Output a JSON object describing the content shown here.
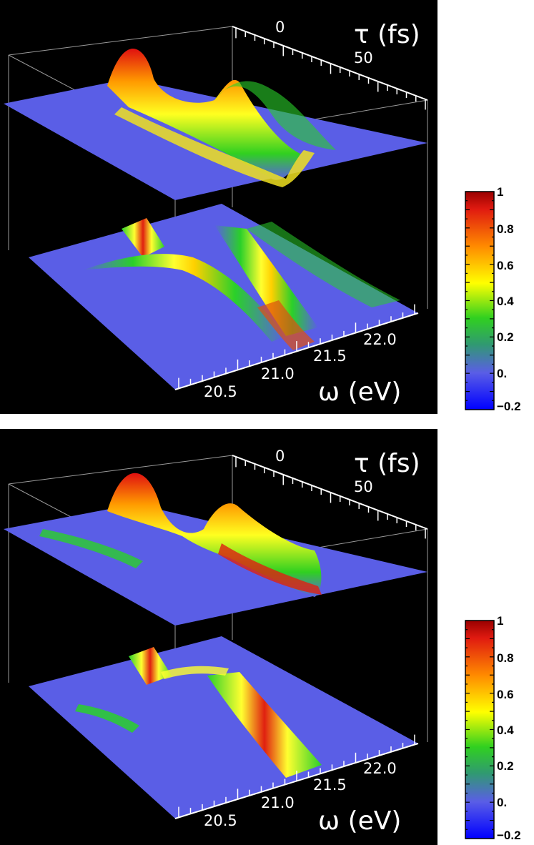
{
  "chart_data": [
    {
      "type": "surface3d",
      "xlabel": "ω (eV)",
      "ylabel": "τ (fs)",
      "x_ticks": [
        "20.5",
        "21.0",
        "21.5",
        "22.0"
      ],
      "y_ticks": [
        "0",
        "50"
      ],
      "colorbar": {
        "ticks": [
          "1",
          "0.8",
          "0.6",
          "0.4",
          "0.2",
          "0.",
          "−0.2"
        ],
        "range": [
          -0.2,
          1
        ]
      },
      "colors": {
        "low": "#0000ff",
        "zero": "#5a5ee6",
        "mid": "#00cc00",
        "high": "#ffff00",
        "max": "#ff0000"
      }
    },
    {
      "type": "surface3d",
      "xlabel": "ω (eV)",
      "ylabel": "τ (fs)",
      "x_ticks": [
        "20.5",
        "21.0",
        "21.5",
        "22.0"
      ],
      "y_ticks": [
        "0",
        "50"
      ],
      "colorbar": {
        "ticks": [
          "1",
          "0.8",
          "0.6",
          "0.4",
          "0.2",
          "0.",
          "−0.2"
        ],
        "range": [
          -0.2,
          1
        ]
      },
      "colors": {
        "low": "#0000ff",
        "zero": "#5a5ee6",
        "mid": "#00cc00",
        "high": "#ffff00",
        "max": "#ff0000"
      }
    }
  ]
}
